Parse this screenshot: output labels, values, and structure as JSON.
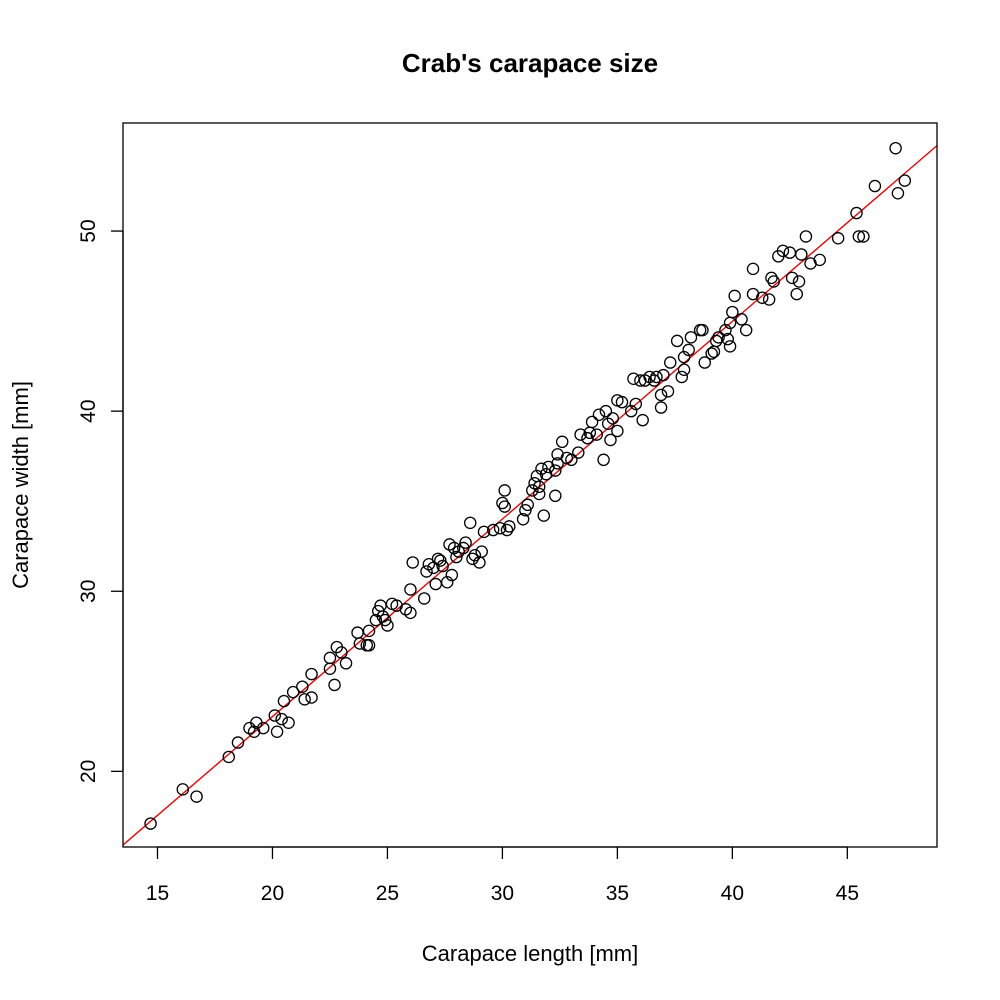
{
  "chart_data": {
    "type": "scatter",
    "title": "Crab's carapace size",
    "xlabel": "Carapace length [mm]",
    "ylabel": "Carapace width [mm]",
    "xlim": [
      13.5,
      48.9
    ],
    "ylim": [
      15.8,
      56.0
    ],
    "x_ticks": [
      "15",
      "20",
      "25",
      "30",
      "35",
      "40",
      "45"
    ],
    "y_ticks": [
      "20",
      "30",
      "40",
      "50"
    ],
    "grid": false,
    "colors": {
      "points": "#000000",
      "fit_line": "#ee0000"
    },
    "fit_line": {
      "intercept": 1.1,
      "slope": 1.097
    },
    "points": [
      [
        14.7,
        17.1
      ],
      [
        16.1,
        19.0
      ],
      [
        16.7,
        18.6
      ],
      [
        18.1,
        20.8
      ],
      [
        18.5,
        21.6
      ],
      [
        19.0,
        22.4
      ],
      [
        19.2,
        22.2
      ],
      [
        19.3,
        22.7
      ],
      [
        19.6,
        22.4
      ],
      [
        20.1,
        23.1
      ],
      [
        20.2,
        22.2
      ],
      [
        20.4,
        22.9
      ],
      [
        20.5,
        23.9
      ],
      [
        20.7,
        22.7
      ],
      [
        20.9,
        24.4
      ],
      [
        21.3,
        24.7
      ],
      [
        21.4,
        24.0
      ],
      [
        21.7,
        24.1
      ],
      [
        21.7,
        25.4
      ],
      [
        22.5,
        25.7
      ],
      [
        22.5,
        26.3
      ],
      [
        22.7,
        24.8
      ],
      [
        22.8,
        26.9
      ],
      [
        23.0,
        26.6
      ],
      [
        23.2,
        26.0
      ],
      [
        23.7,
        27.7
      ],
      [
        23.8,
        27.1
      ],
      [
        24.1,
        27.0
      ],
      [
        24.2,
        27.0
      ],
      [
        24.2,
        27.8
      ],
      [
        24.5,
        28.4
      ],
      [
        24.6,
        28.9
      ],
      [
        24.7,
        29.2
      ],
      [
        24.8,
        28.6
      ],
      [
        24.9,
        28.4
      ],
      [
        25.0,
        28.1
      ],
      [
        25.2,
        29.3
      ],
      [
        25.4,
        29.2
      ],
      [
        25.8,
        29.0
      ],
      [
        26.0,
        28.8
      ],
      [
        26.0,
        30.1
      ],
      [
        26.1,
        31.6
      ],
      [
        26.6,
        29.6
      ],
      [
        26.7,
        31.1
      ],
      [
        26.8,
        31.5
      ],
      [
        27.0,
        31.3
      ],
      [
        27.1,
        30.4
      ],
      [
        27.2,
        31.8
      ],
      [
        27.3,
        31.7
      ],
      [
        27.4,
        31.4
      ],
      [
        27.6,
        30.5
      ],
      [
        27.7,
        32.6
      ],
      [
        27.8,
        30.9
      ],
      [
        27.9,
        32.4
      ],
      [
        28.0,
        31.9
      ],
      [
        28.1,
        32.2
      ],
      [
        28.3,
        32.4
      ],
      [
        28.4,
        32.7
      ],
      [
        28.6,
        33.8
      ],
      [
        28.7,
        31.8
      ],
      [
        28.8,
        32.0
      ],
      [
        29.0,
        31.6
      ],
      [
        29.1,
        32.2
      ],
      [
        29.2,
        33.3
      ],
      [
        29.6,
        33.4
      ],
      [
        29.9,
        33.5
      ],
      [
        30.0,
        34.9
      ],
      [
        30.1,
        34.7
      ],
      [
        30.1,
        35.6
      ],
      [
        30.2,
        33.4
      ],
      [
        30.3,
        33.6
      ],
      [
        30.9,
        34.0
      ],
      [
        31.0,
        34.5
      ],
      [
        31.1,
        34.8
      ],
      [
        31.3,
        35.6
      ],
      [
        31.4,
        36.0
      ],
      [
        31.5,
        36.4
      ],
      [
        31.6,
        35.4
      ],
      [
        31.6,
        35.8
      ],
      [
        31.7,
        36.8
      ],
      [
        31.8,
        34.2
      ],
      [
        31.9,
        36.5
      ],
      [
        32.0,
        36.9
      ],
      [
        32.3,
        35.3
      ],
      [
        32.3,
        36.7
      ],
      [
        32.4,
        37.1
      ],
      [
        32.4,
        37.6
      ],
      [
        32.6,
        38.3
      ],
      [
        32.8,
        37.4
      ],
      [
        33.0,
        37.3
      ],
      [
        33.3,
        37.7
      ],
      [
        33.4,
        38.7
      ],
      [
        33.7,
        38.5
      ],
      [
        33.8,
        38.8
      ],
      [
        33.9,
        39.4
      ],
      [
        34.1,
        38.7
      ],
      [
        34.2,
        39.8
      ],
      [
        34.4,
        37.3
      ],
      [
        34.5,
        40.0
      ],
      [
        34.6,
        39.3
      ],
      [
        34.7,
        38.4
      ],
      [
        34.8,
        39.6
      ],
      [
        35.0,
        38.9
      ],
      [
        35.0,
        40.6
      ],
      [
        35.2,
        40.5
      ],
      [
        35.6,
        40.0
      ],
      [
        35.7,
        41.8
      ],
      [
        35.8,
        40.4
      ],
      [
        36.0,
        41.7
      ],
      [
        36.1,
        39.5
      ],
      [
        36.2,
        41.7
      ],
      [
        36.4,
        41.9
      ],
      [
        36.6,
        41.7
      ],
      [
        36.7,
        41.9
      ],
      [
        36.9,
        40.2
      ],
      [
        36.9,
        40.9
      ],
      [
        37.0,
        42.0
      ],
      [
        37.2,
        41.1
      ],
      [
        37.3,
        42.7
      ],
      [
        37.6,
        43.9
      ],
      [
        37.8,
        41.9
      ],
      [
        37.9,
        42.3
      ],
      [
        37.9,
        43.0
      ],
      [
        38.1,
        43.4
      ],
      [
        38.2,
        44.1
      ],
      [
        38.6,
        44.5
      ],
      [
        38.7,
        44.5
      ],
      [
        38.8,
        42.7
      ],
      [
        39.1,
        43.2
      ],
      [
        39.2,
        43.3
      ],
      [
        39.3,
        43.9
      ],
      [
        39.4,
        44.1
      ],
      [
        39.7,
        44.5
      ],
      [
        39.8,
        44.0
      ],
      [
        39.9,
        43.6
      ],
      [
        39.9,
        44.9
      ],
      [
        40.0,
        45.5
      ],
      [
        40.1,
        46.4
      ],
      [
        40.4,
        45.1
      ],
      [
        40.6,
        44.5
      ],
      [
        40.9,
        46.5
      ],
      [
        40.9,
        47.9
      ],
      [
        41.3,
        46.3
      ],
      [
        41.6,
        46.2
      ],
      [
        41.7,
        47.4
      ],
      [
        41.8,
        47.2
      ],
      [
        42.0,
        48.6
      ],
      [
        42.2,
        48.9
      ],
      [
        42.5,
        48.8
      ],
      [
        42.6,
        47.4
      ],
      [
        42.8,
        46.5
      ],
      [
        42.9,
        47.2
      ],
      [
        43.0,
        48.7
      ],
      [
        43.2,
        49.7
      ],
      [
        43.4,
        48.2
      ],
      [
        43.8,
        48.4
      ],
      [
        44.6,
        49.6
      ],
      [
        45.4,
        51.0
      ],
      [
        45.5,
        49.7
      ],
      [
        45.7,
        49.7
      ],
      [
        46.2,
        52.5
      ],
      [
        47.1,
        54.6
      ],
      [
        47.2,
        52.1
      ],
      [
        47.5,
        52.8
      ]
    ]
  }
}
